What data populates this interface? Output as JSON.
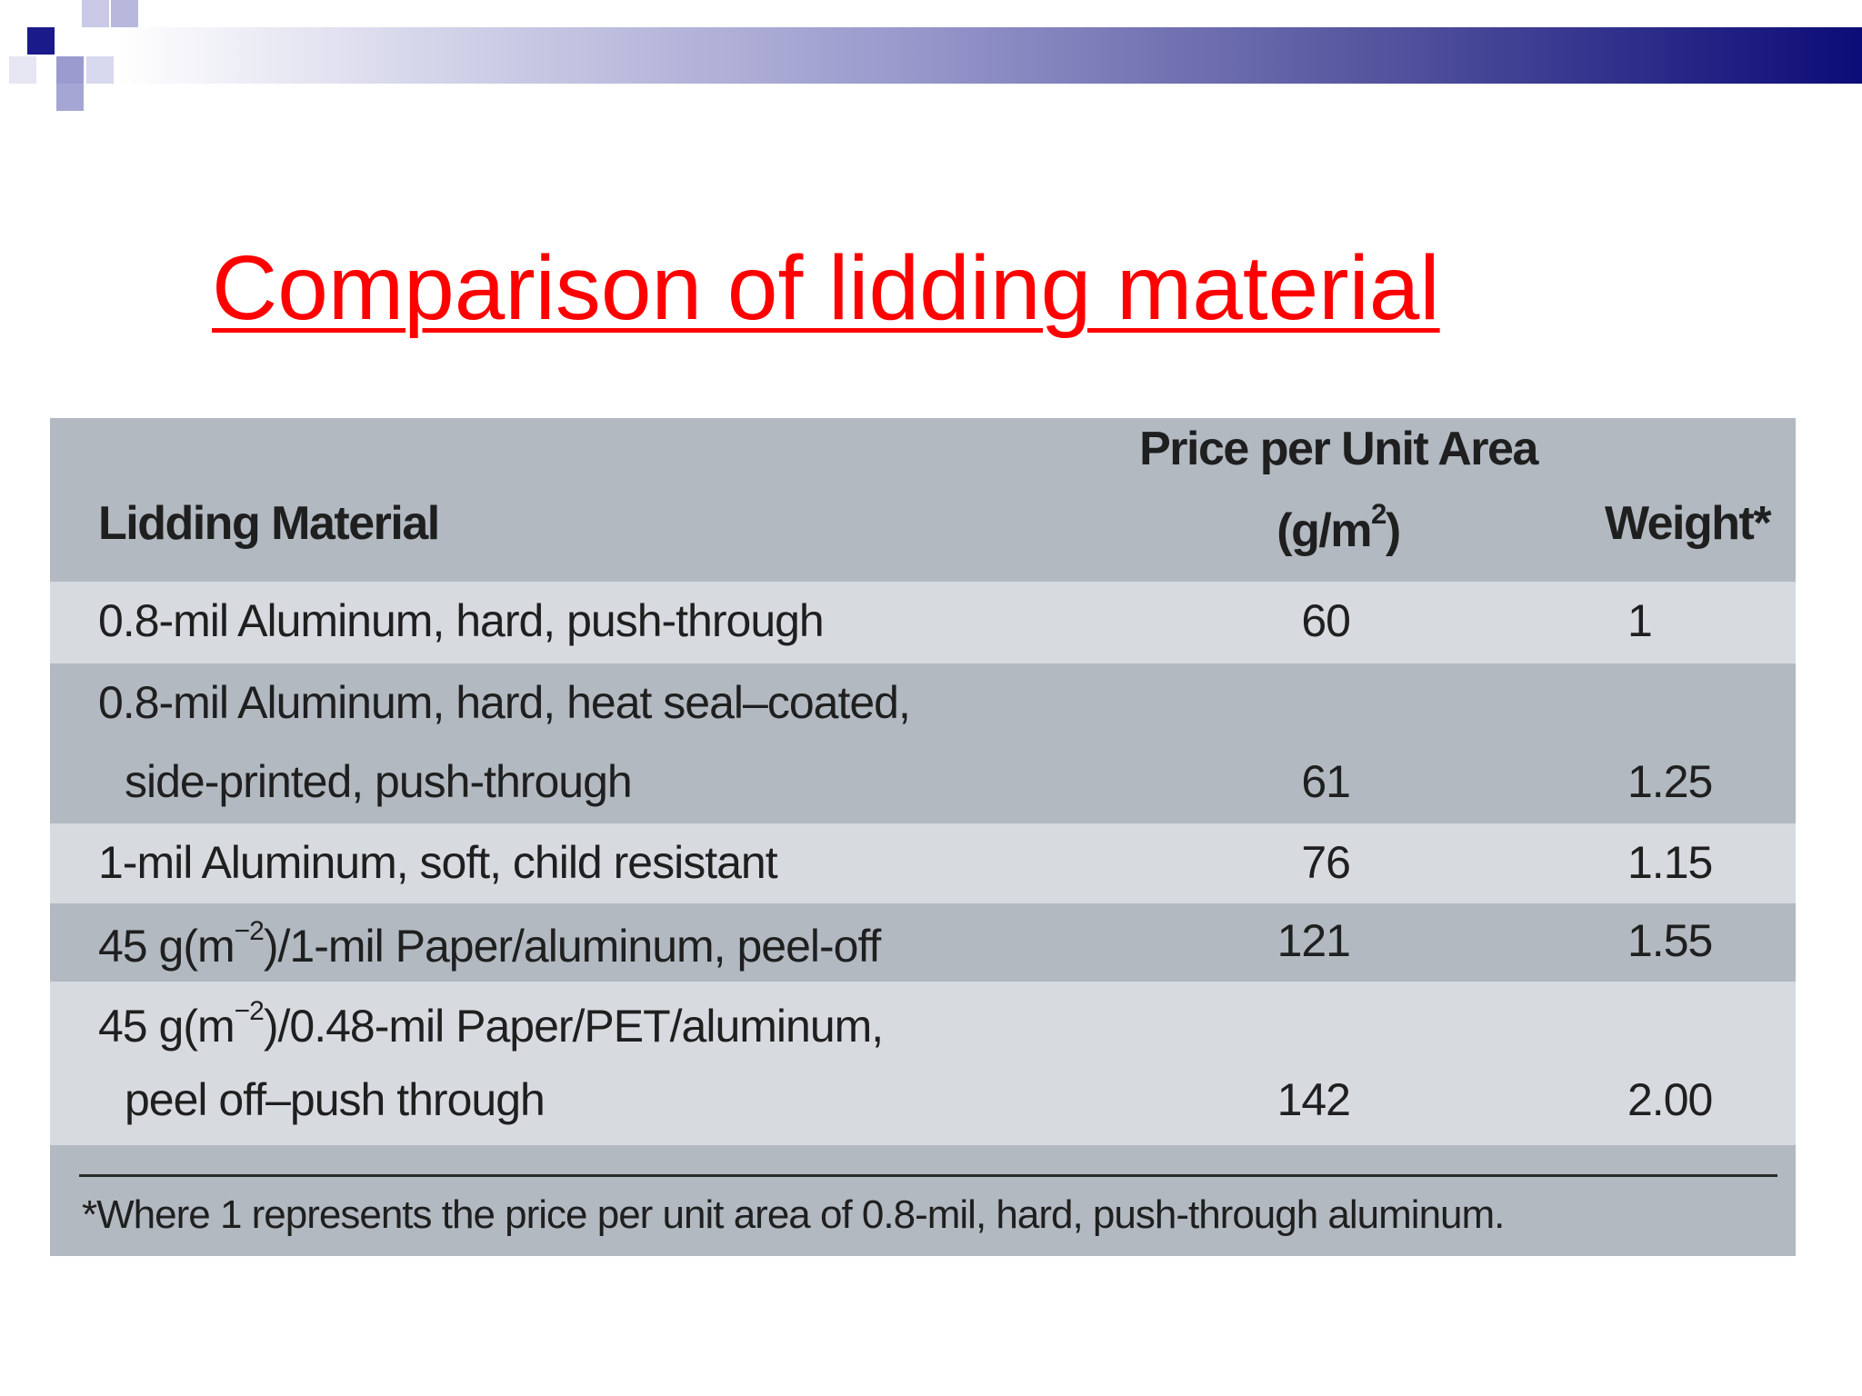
{
  "title": "Comparison of lidding material",
  "table": {
    "header": {
      "material": "Lidding Material",
      "price_line1": "Price per Unit Area",
      "price_line2": "(g/m",
      "price_sup": "2",
      "price_close": ")",
      "weight": "Weight*"
    },
    "rows": [
      {
        "material_line1": "0.8-mil Aluminum, hard, push-through",
        "price": "60",
        "weight": "1"
      },
      {
        "material_line1": "0.8-mil Aluminum, hard, heat seal–coated,",
        "material_line2": "side-printed, push-through",
        "price": "61",
        "weight": "1.25"
      },
      {
        "material_line1": "1-mil Aluminum, soft, child resistant",
        "price": "76",
        "weight": "1.15"
      },
      {
        "material_pre": "45 g(m",
        "material_sup": "−2",
        "material_post": ")/1-mil Paper/aluminum, peel-off",
        "price": "121",
        "weight": "1.55"
      },
      {
        "material_pre": "45 g(m",
        "material_sup": "−2",
        "material_post": ")/0.48-mil Paper/PET/aluminum,",
        "material_line2": "peel off–push through",
        "price": "142",
        "weight": "2.00"
      }
    ],
    "footnote": "*Where 1 represents the price per unit area of 0.8-mil, hard, push-through aluminum."
  },
  "colors": {
    "title": "#ff0000",
    "table_dark": "#b2b9c1",
    "table_light": "#d7dbe0",
    "band_end": "#0c0c78"
  }
}
